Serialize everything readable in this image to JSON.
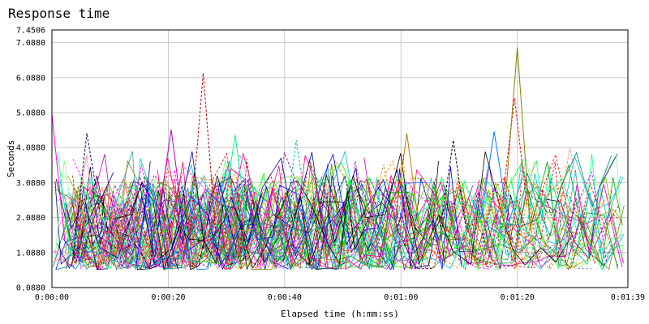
{
  "chart_data": {
    "type": "line",
    "title": "Response time",
    "xlabel": "Elapsed time (h:mm:ss)",
    "ylabel": "Seconds",
    "x_range_seconds": [
      0,
      99
    ],
    "ylim": [
      0.088,
      7.4506
    ],
    "y_ticks": [
      {
        "value": 0.088,
        "label": "0.0880"
      },
      {
        "value": 1.088,
        "label": "1.0880"
      },
      {
        "value": 2.088,
        "label": "2.0880"
      },
      {
        "value": 3.088,
        "label": "3.0880"
      },
      {
        "value": 4.088,
        "label": "4.0880"
      },
      {
        "value": 5.088,
        "label": "5.0880"
      },
      {
        "value": 6.088,
        "label": "6.0880"
      },
      {
        "value": 7.088,
        "label": "7.0880"
      },
      {
        "value": 7.4506,
        "label": "7.4506"
      }
    ],
    "x_ticks": [
      {
        "value": 0,
        "label": "0:00:00"
      },
      {
        "value": 20,
        "label": "0:00:20"
      },
      {
        "value": 40,
        "label": "0:00:40"
      },
      {
        "value": 60,
        "label": "0:01:00"
      },
      {
        "value": 80,
        "label": "0:01:20"
      },
      {
        "value": 99,
        "label": "0:01:39"
      }
    ],
    "grid": true,
    "legend": "none",
    "series_count": 160,
    "typical_range": [
      0.6,
      3.3
    ],
    "peaks": [
      {
        "x": 0,
        "y": 5.05
      },
      {
        "x": 6,
        "y": 4.5
      },
      {
        "x": 20.5,
        "y": 4.6
      },
      {
        "x": 26,
        "y": 6.22
      },
      {
        "x": 31.5,
        "y": 4.45
      },
      {
        "x": 42,
        "y": 4.3
      },
      {
        "x": 61,
        "y": 4.5
      },
      {
        "x": 69,
        "y": 4.3
      },
      {
        "x": 76,
        "y": 4.55
      },
      {
        "x": 79.5,
        "y": 5.5
      },
      {
        "x": 80,
        "y": 6.95
      },
      {
        "x": 89,
        "y": 4.1
      }
    ],
    "colors": [
      "#ff0000",
      "#0000ff",
      "#00a000",
      "#ff00ff",
      "#00c0c0",
      "#808000",
      "#800080",
      "#008080",
      "#000080",
      "#c08000",
      "#ff8080",
      "#80ff80",
      "#8080ff",
      "#c000c0",
      "#000000",
      "#ff8000",
      "#00ff00",
      "#80c000",
      "#c00000",
      "#0080ff",
      "#40a0a0",
      "#a000ff",
      "#ff0080",
      "#00ff80"
    ]
  }
}
